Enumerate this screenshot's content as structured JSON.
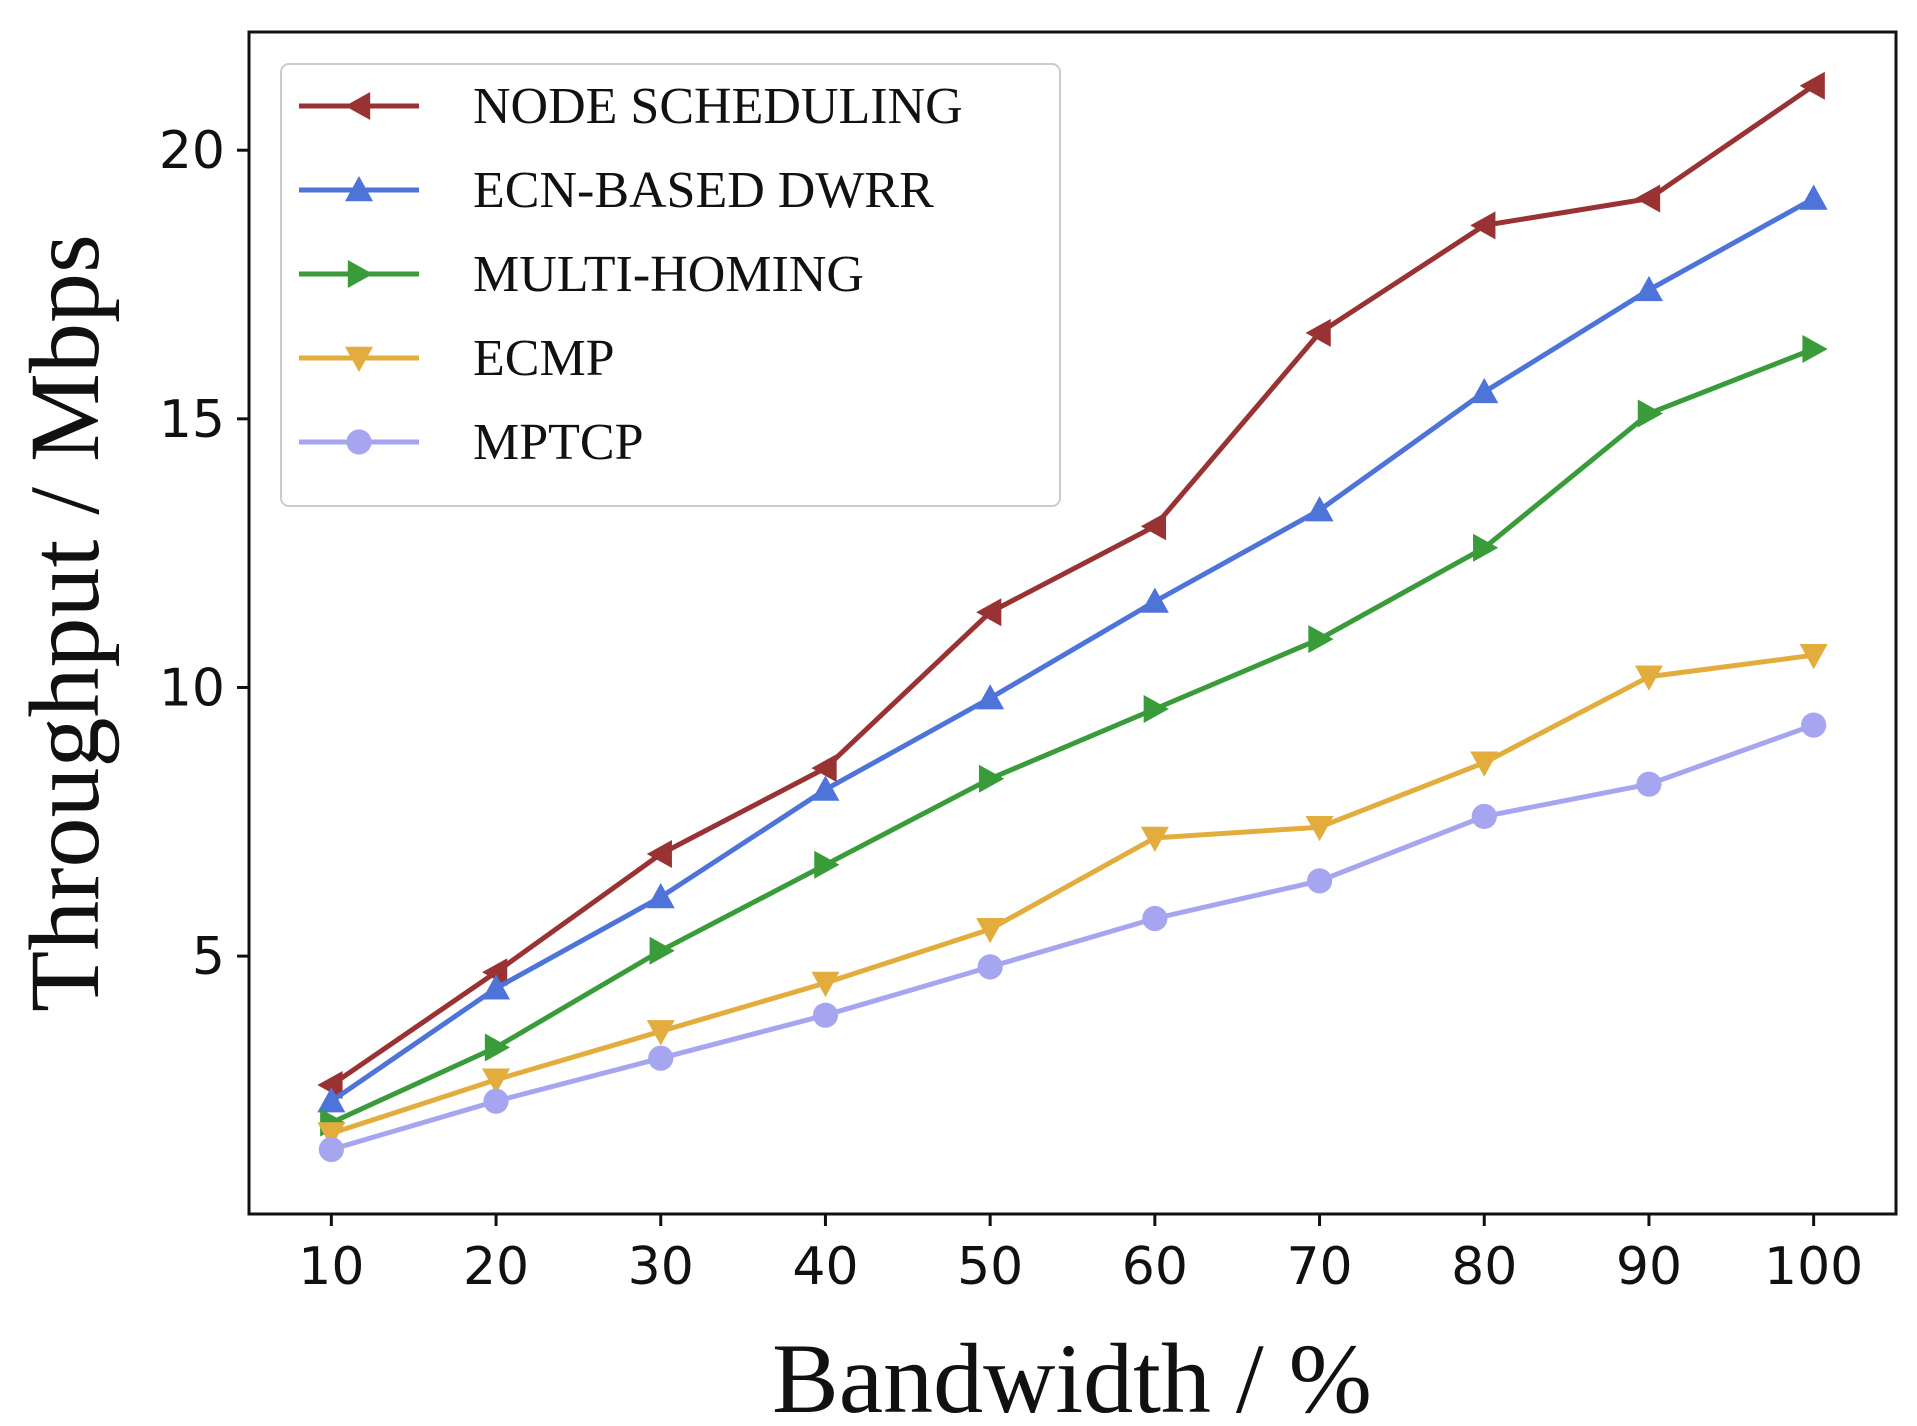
{
  "chart_data": {
    "type": "line",
    "title": "",
    "xlabel": "Bandwidth / %",
    "ylabel": "Throughput / Mbps",
    "x": [
      10,
      20,
      30,
      40,
      50,
      60,
      70,
      80,
      90,
      100
    ],
    "xlim": [
      5,
      105
    ],
    "ylim": [
      0.2,
      22.2
    ],
    "xticks": [
      "10",
      "20",
      "30",
      "40",
      "50",
      "60",
      "70",
      "80",
      "90",
      "100"
    ],
    "yticks": [
      5,
      10,
      15,
      20
    ],
    "ytick_labels": [
      "5",
      "10",
      "15",
      "20"
    ],
    "grid": false,
    "legend_position": "top-left",
    "series": [
      {
        "name": "NODE SCHEDULING",
        "color": "#993333",
        "marker": "triangle-left",
        "values": [
          2.6,
          4.7,
          6.9,
          8.5,
          11.4,
          13.0,
          16.6,
          18.6,
          19.1,
          21.2
        ]
      },
      {
        "name": "ECN-BASED DWRR",
        "color": "#4f74d9",
        "marker": "triangle-up",
        "values": [
          2.3,
          4.4,
          6.1,
          8.1,
          9.8,
          11.6,
          13.3,
          15.5,
          17.4,
          19.1
        ]
      },
      {
        "name": "MULTI-HOMING",
        "color": "#3a9b3a",
        "marker": "triangle-right",
        "values": [
          1.9,
          3.3,
          5.1,
          6.7,
          8.3,
          9.6,
          10.9,
          12.6,
          15.1,
          16.3
        ]
      },
      {
        "name": "ECMP",
        "color": "#e3ad3e",
        "marker": "triangle-down",
        "values": [
          1.7,
          2.7,
          3.6,
          4.5,
          5.5,
          7.2,
          7.4,
          8.6,
          10.2,
          10.6
        ]
      },
      {
        "name": "MPTCP",
        "color": "#a6a6f0",
        "marker": "circle",
        "values": [
          1.4,
          2.3,
          3.1,
          3.9,
          4.8,
          5.7,
          6.4,
          7.6,
          8.2,
          9.3
        ]
      }
    ]
  }
}
